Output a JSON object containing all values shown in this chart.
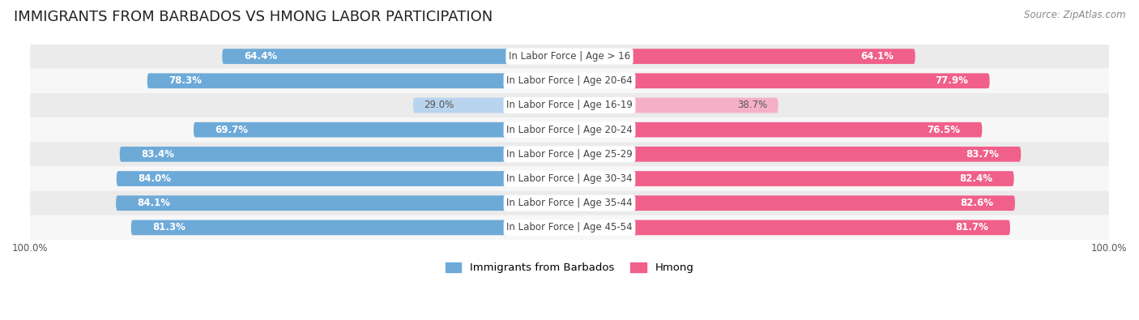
{
  "title": "IMMIGRANTS FROM BARBADOS VS HMONG LABOR PARTICIPATION",
  "source": "Source: ZipAtlas.com",
  "categories": [
    "In Labor Force | Age > 16",
    "In Labor Force | Age 20-64",
    "In Labor Force | Age 16-19",
    "In Labor Force | Age 20-24",
    "In Labor Force | Age 25-29",
    "In Labor Force | Age 30-34",
    "In Labor Force | Age 35-44",
    "In Labor Force | Age 45-54"
  ],
  "barbados_values": [
    64.4,
    78.3,
    29.0,
    69.7,
    83.4,
    84.0,
    84.1,
    81.3
  ],
  "hmong_values": [
    64.1,
    77.9,
    38.7,
    76.5,
    83.7,
    82.4,
    82.6,
    81.7
  ],
  "barbados_color": "#6daad8",
  "barbados_color_light": "#b8d4ee",
  "hmong_color": "#f0608a",
  "hmong_color_light": "#f5b0c8",
  "row_bg_colors": [
    "#ebebeb",
    "#f7f7f7"
  ],
  "max_value": 100.0,
  "bar_height": 0.62,
  "title_fontsize": 13,
  "label_fontsize": 8.5,
  "value_fontsize": 8.5,
  "legend_fontsize": 9.5,
  "source_fontsize": 8.5
}
